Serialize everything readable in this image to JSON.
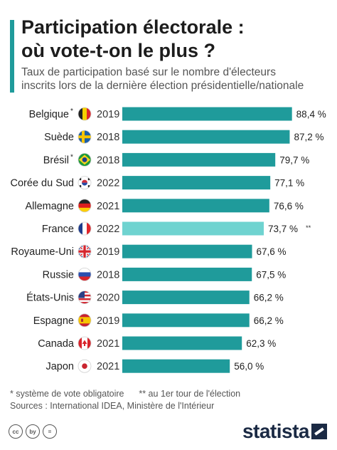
{
  "header": {
    "title_line1": "Participation électorale :",
    "title_line2": "où vote-t-on le plus ?",
    "subtitle_line1": "Taux de participation basé sur le nombre d'électeurs",
    "subtitle_line2": "inscrits lors de la dernière élection présidentielle/nationale"
  },
  "colors": {
    "bar": "#1f9b9b",
    "bar_highlight": "#6fd3d0",
    "accent": "#1f9b9b"
  },
  "chart_data": {
    "type": "bar",
    "orientation": "horizontal",
    "ylim": [
      0,
      100
    ],
    "rows": [
      {
        "country": "Belgique",
        "mark": "*",
        "year": "2019",
        "value": 88.4,
        "label": "88,4 %",
        "flag": "flag-belgium"
      },
      {
        "country": "Suède",
        "mark": "",
        "year": "2018",
        "value": 87.2,
        "label": "87,2 %",
        "flag": "flag-sweden"
      },
      {
        "country": "Brésil",
        "mark": "*",
        "year": "2018",
        "value": 79.7,
        "label": "79,7 %",
        "flag": "flag-brazil"
      },
      {
        "country": "Corée du Sud",
        "mark": "",
        "year": "2022",
        "value": 77.1,
        "label": "77,1 %",
        "flag": "flag-south-korea"
      },
      {
        "country": "Allemagne",
        "mark": "",
        "year": "2021",
        "value": 76.6,
        "label": "76,6 %",
        "flag": "flag-germany"
      },
      {
        "country": "France",
        "mark": "",
        "year": "2022",
        "value": 73.7,
        "label": "73,7 %",
        "suffix": "**",
        "highlight": true,
        "flag": "flag-france"
      },
      {
        "country": "Royaume-Uni",
        "mark": "",
        "year": "2019",
        "value": 67.6,
        "label": "67,6 %",
        "flag": "flag-uk"
      },
      {
        "country": "Russie",
        "mark": "",
        "year": "2018",
        "value": 67.5,
        "label": "67,5 %",
        "flag": "flag-russia"
      },
      {
        "country": "États-Unis",
        "mark": "",
        "year": "2020",
        "value": 66.2,
        "label": "66,2 %",
        "flag": "flag-usa"
      },
      {
        "country": "Espagne",
        "mark": "",
        "year": "2019",
        "value": 66.2,
        "label": "66,2 %",
        "flag": "flag-spain"
      },
      {
        "country": "Canada",
        "mark": "",
        "year": "2021",
        "value": 62.3,
        "label": "62,3 %",
        "flag": "flag-canada"
      },
      {
        "country": "Japon",
        "mark": "",
        "year": "2021",
        "value": 56.0,
        "label": "56,0 %",
        "flag": "flag-japan"
      }
    ]
  },
  "footer": {
    "note_mandatory": "*  système de vote obligatoire",
    "note_first_round": "** au 1er tour de l'élection",
    "sources": "Sources : International IDEA, Ministère de l'Intérieur",
    "brand": "statista",
    "cc_icons": [
      "cc",
      "by",
      "="
    ]
  }
}
